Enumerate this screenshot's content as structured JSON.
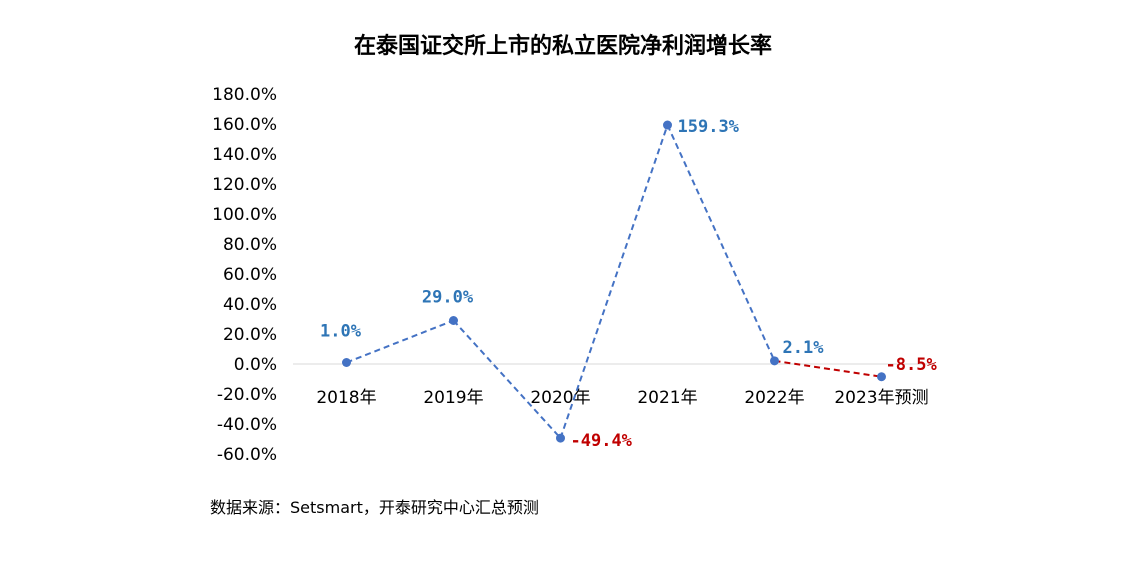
{
  "chart_data": {
    "type": "line",
    "title": "在泰国证交所上市的私立医院净利润增长率",
    "categories": [
      "2018年",
      "2019年",
      "2020年",
      "2021年",
      "2022年",
      "2023年预测"
    ],
    "values": [
      1.0,
      29.0,
      -49.4,
      159.3,
      2.1,
      -8.5
    ],
    "data_labels": [
      "1.0%",
      "29.0%",
      "-49.4%",
      "159.3%",
      "2.1%",
      "-8.5%"
    ],
    "ylim": [
      -60,
      180
    ],
    "yticks": [
      -60,
      -40,
      -20,
      0,
      20,
      40,
      60,
      80,
      100,
      120,
      140,
      160,
      180
    ],
    "ytick_labels": [
      "-60.0%",
      "-40.0%",
      "-20.0%",
      "0.0%",
      "20.0%",
      "40.0%",
      "60.0%",
      "80.0%",
      "100.0%",
      "120.0%",
      "140.0%",
      "160.0%",
      "180.0%"
    ],
    "line_style": "dashed",
    "grid": false,
    "legend": "none",
    "colors": {
      "actual": "#4472C4",
      "forecast": "#C00000",
      "label_actual": "#2E75B6",
      "label_forecast": "#C00000",
      "axis": "#D9D9D9"
    }
  },
  "source": "数据来源：Setsmart，开泰研究中心汇总预测"
}
